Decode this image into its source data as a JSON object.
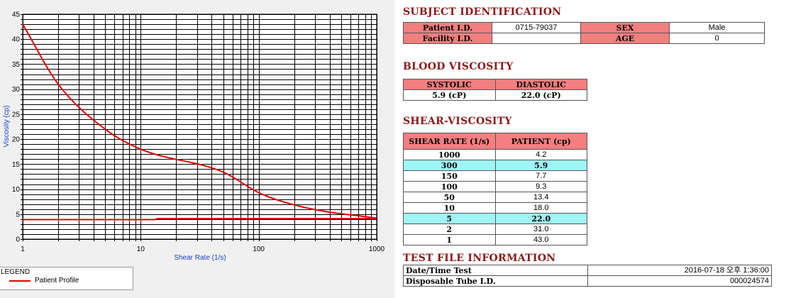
{
  "chart_data": {
    "type": "line",
    "xscale": "log",
    "xlim": [
      1,
      1000
    ],
    "ylim": [
      0,
      45
    ],
    "xticks": [
      "1",
      "10",
      "100",
      "1000"
    ],
    "yticks": [
      "0",
      "5",
      "10",
      "15",
      "20",
      "25",
      "30",
      "35",
      "40",
      "45"
    ],
    "xlabel": "Shear Rate (1/s)",
    "ylabel": "Viscosity (cp)",
    "grid": true,
    "series": [
      {
        "name": "Patient Profile",
        "color": "#e00000",
        "x": [
          1,
          2,
          5,
          10,
          50,
          100,
          150,
          300,
          1000
        ],
        "y": [
          43.0,
          31.0,
          22.0,
          18.0,
          13.4,
          9.3,
          7.7,
          5.9,
          4.2
        ]
      },
      {
        "name": "",
        "color": "#e00000",
        "x": [
          1,
          13,
          14,
          1000
        ],
        "y": [
          3.9,
          3.9,
          4.1,
          4.1
        ]
      }
    ]
  },
  "legend": {
    "title": "LEGEND",
    "label": "Patient Profile"
  },
  "subject": {
    "title": "SUBJECT IDENTIFICATION",
    "patient_id_label": "Patient I.D.",
    "patient_id": "0715-79037",
    "sex_label": "SEX",
    "sex": "Male",
    "facility_label": "Facility I.D.",
    "facility": "",
    "age_label": "AGE",
    "age": "0"
  },
  "blood": {
    "title": "BLOOD VISCOSITY",
    "systolic_label": "SYSTOLIC",
    "diastolic_label": "DIASTOLIC",
    "systolic": "5.9 (cP)",
    "diastolic": "22.0 (cP)"
  },
  "shear": {
    "title": "SHEAR-VISCOSITY",
    "col1": "SHEAR RATE (1/s)",
    "col2": "PATIENT (cp)",
    "rows": [
      {
        "rate": "1000",
        "val": "4.2"
      },
      {
        "rate": "300",
        "val": "5.9"
      },
      {
        "rate": "150",
        "val": "7.7"
      },
      {
        "rate": "100",
        "val": "9.3"
      },
      {
        "rate": "50",
        "val": "13.4"
      },
      {
        "rate": "10",
        "val": "18.0"
      },
      {
        "rate": "5",
        "val": "22.0"
      },
      {
        "rate": "2",
        "val": "31.0"
      },
      {
        "rate": "1",
        "val": "43.0"
      }
    ]
  },
  "file": {
    "title": "TEST FILE INFORMATION",
    "date_label": "Date/Time Test",
    "date": "2016-07-18  오후 1:36:00",
    "tube_label": "Disposable Tube I.D.",
    "tube": "000024574"
  }
}
